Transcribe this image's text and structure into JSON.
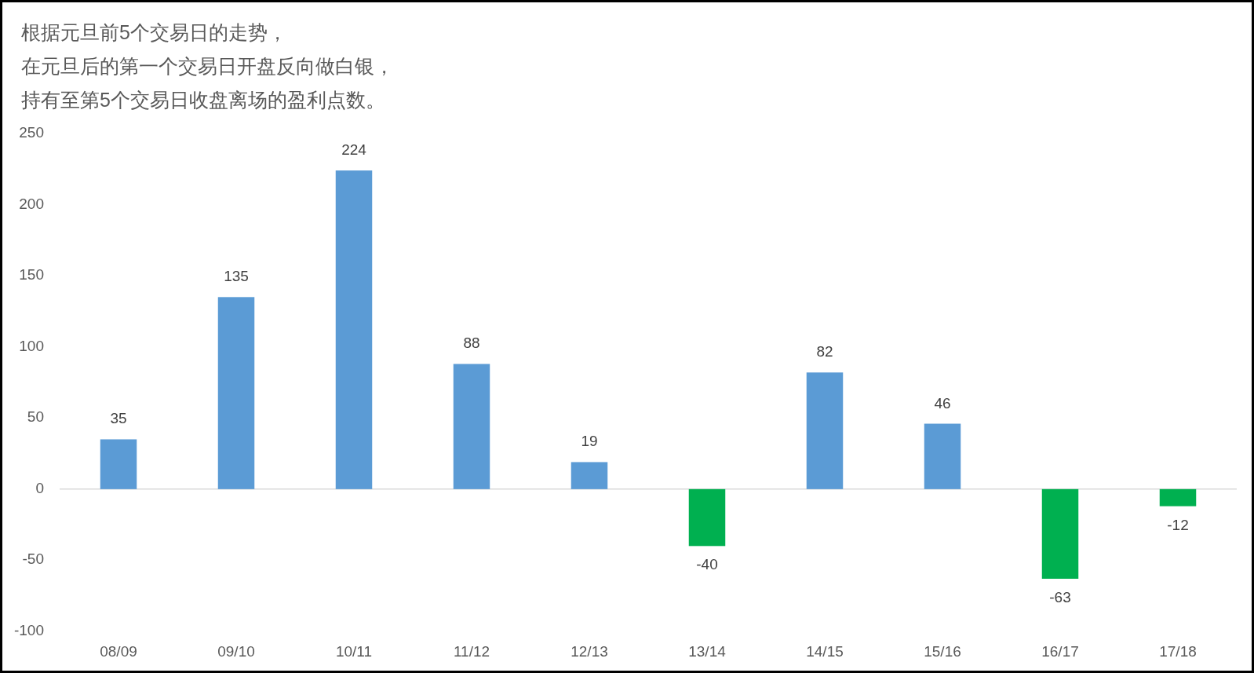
{
  "chart_data": {
    "type": "bar",
    "title": "根据元旦前5个交易日的走势，在元旦后的第一个交易日开盘反向做白银，持有至第5个交易日收盘离场的盈利点数。",
    "categories": [
      "08/09",
      "09/10",
      "10/11",
      "11/12",
      "12/13",
      "13/14",
      "14/15",
      "15/16",
      "16/17",
      "17/18"
    ],
    "values": [
      35,
      135,
      224,
      88,
      19,
      -40,
      82,
      46,
      -63,
      -12
    ],
    "colors": [
      "#5b9bd5",
      "#5b9bd5",
      "#5b9bd5",
      "#5b9bd5",
      "#5b9bd5",
      "#00b050",
      "#5b9bd5",
      "#5b9bd5",
      "#00b050",
      "#00b050"
    ],
    "ylim": [
      -100,
      250
    ],
    "yticks": [
      -100,
      -50,
      0,
      50,
      100,
      150,
      200,
      250
    ],
    "data_labels": true
  }
}
